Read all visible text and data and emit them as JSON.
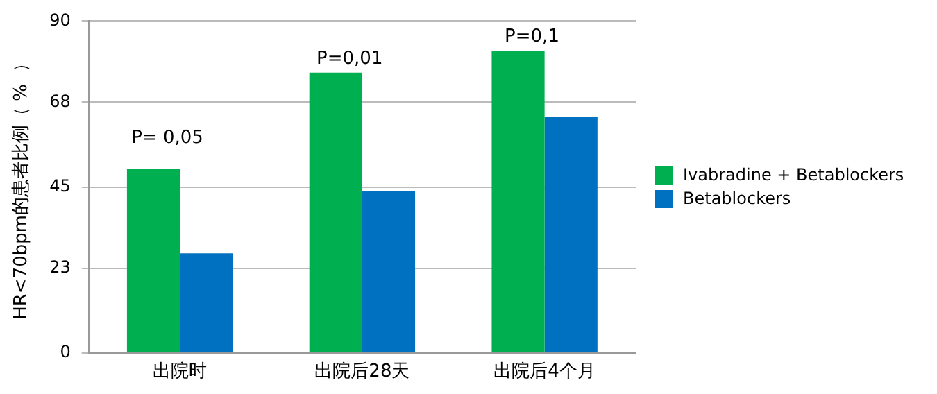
{
  "chart_data": {
    "type": "bar",
    "ylabel": "HR<70bpm的患者比例（ %  ）",
    "categories": [
      "出院时",
      "出院后28天",
      "出院后4个月"
    ],
    "series": [
      {
        "name": "Ivabradine + Betablockers",
        "color": "#00b050",
        "values": [
          50,
          76,
          82
        ]
      },
      {
        "name": "Betablockers",
        "color": "#0070c0",
        "values": [
          27,
          44,
          64
        ]
      }
    ],
    "ylim": [
      0,
      90
    ],
    "yticks": [
      0,
      23,
      45,
      68,
      90
    ],
    "grid": "y",
    "legend": "right",
    "annotations": [
      "P= 0,05",
      "P=0,01",
      "P=0,1"
    ]
  }
}
